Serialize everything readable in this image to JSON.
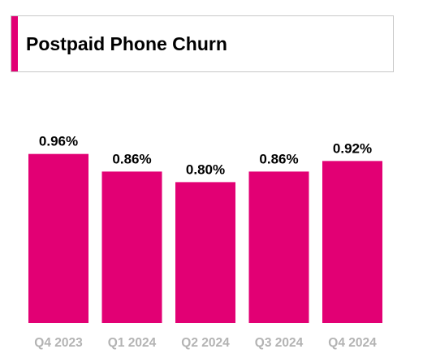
{
  "header": {
    "title": "Postpaid Phone Churn",
    "accent_color": "#e20074"
  },
  "chart_data": {
    "type": "bar",
    "title": "Postpaid Phone Churn",
    "categories": [
      "Q4 2023",
      "Q1 2024",
      "Q2 2024",
      "Q3 2024",
      "Q4 2024"
    ],
    "values": [
      0.96,
      0.86,
      0.8,
      0.86,
      0.92
    ],
    "value_labels": [
      "0.96%",
      "0.86%",
      "0.80%",
      "0.86%",
      "0.92%"
    ],
    "bar_color": "#e20074",
    "category_label_color": "#b3b3b3",
    "xlabel": "",
    "ylabel": "",
    "grid": false,
    "legend": "none"
  }
}
